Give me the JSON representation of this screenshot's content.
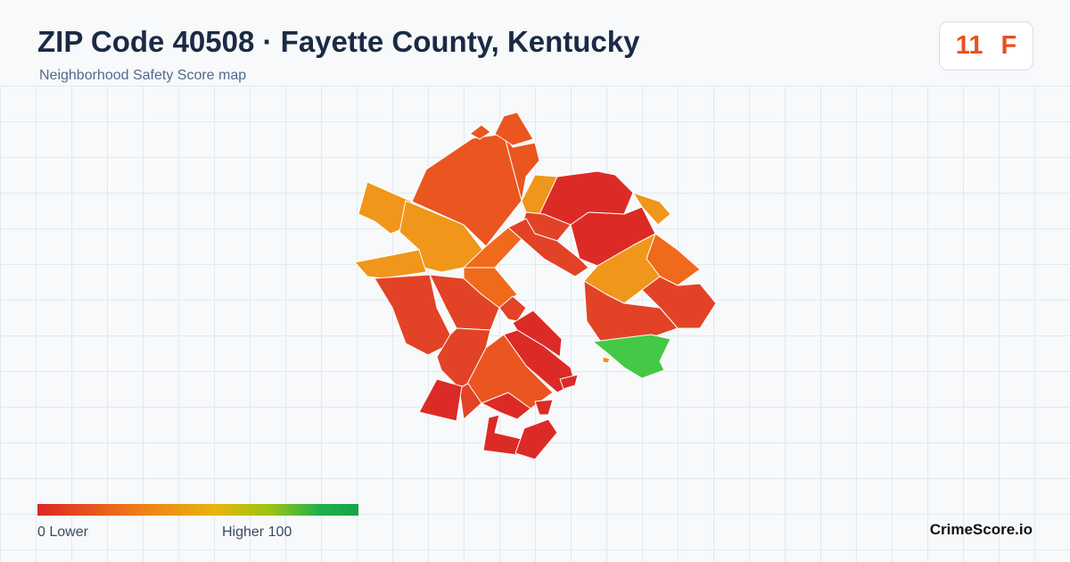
{
  "header": {
    "title": "ZIP Code 40508 · Fayette County, Kentucky",
    "subtitle": "Neighborhood Safety Score map"
  },
  "score": {
    "value": "11",
    "grade": "F",
    "color": "#e8501e"
  },
  "legend": {
    "min_label": "0  Lower",
    "max_label": "Higher  100",
    "colors": [
      "#dc2626",
      "#f07818",
      "#e8b40c",
      "#9cc414",
      "#16a34a"
    ]
  },
  "brand": "CrimeScore.io",
  "map": {
    "region_colors": {
      "red": "#dc2b26",
      "red_orange": "#e24326",
      "orange_red": "#ea5520",
      "orange": "#f06a1c",
      "amber": "#f0961a",
      "green": "#45c845"
    }
  }
}
